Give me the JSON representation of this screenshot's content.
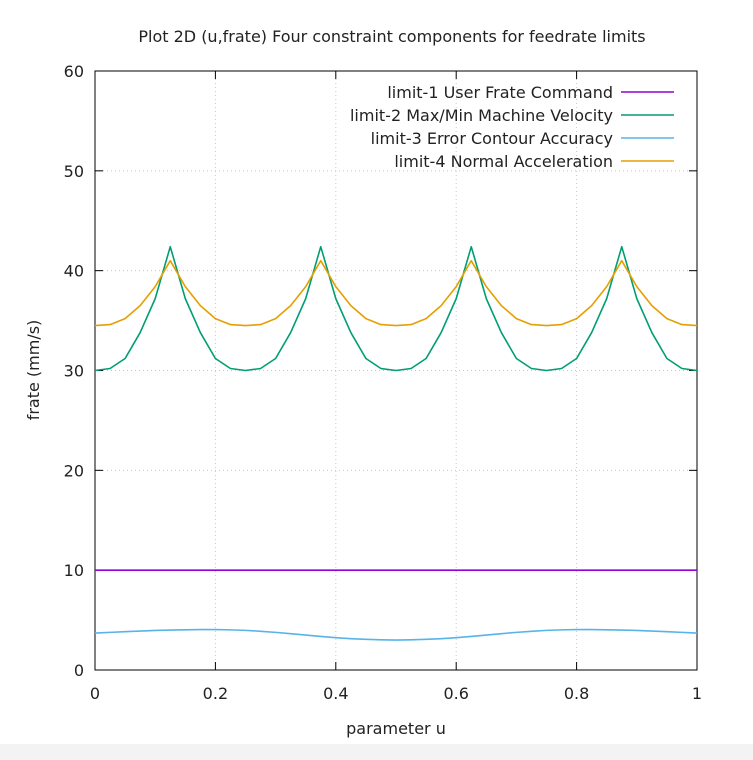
{
  "chart_data": {
    "type": "line",
    "title": "Plot 2D (u,frate) Four constraint components for feedrate limits",
    "xlabel": "parameter u",
    "ylabel": "frate (mm/s)",
    "xlim": [
      0,
      1
    ],
    "ylim": [
      0,
      60
    ],
    "xticks": [
      0,
      0.2,
      0.4,
      0.6,
      0.8,
      1
    ],
    "xtick_labels": [
      "0",
      "0.2",
      "0.4",
      "0.6",
      "0.8",
      "1"
    ],
    "yticks": [
      0,
      10,
      20,
      30,
      40,
      50,
      60
    ],
    "ytick_labels": [
      "0",
      "10",
      "20",
      "30",
      "40",
      "50",
      "60"
    ],
    "grid": true,
    "legend_position": "top-right",
    "x": [
      0,
      0.025,
      0.05,
      0.075,
      0.1,
      0.125,
      0.15,
      0.175,
      0.2,
      0.225,
      0.25,
      0.275,
      0.3,
      0.325,
      0.35,
      0.375,
      0.4,
      0.425,
      0.45,
      0.475,
      0.5,
      0.525,
      0.55,
      0.575,
      0.6,
      0.625,
      0.65,
      0.675,
      0.7,
      0.725,
      0.75,
      0.775,
      0.8,
      0.825,
      0.85,
      0.875,
      0.9,
      0.925,
      0.95,
      0.975,
      1
    ],
    "series": [
      {
        "name": "limit-1 User Frate Command",
        "color": "#9400d3",
        "values": [
          10,
          10,
          10,
          10,
          10,
          10,
          10,
          10,
          10,
          10,
          10,
          10,
          10,
          10,
          10,
          10,
          10,
          10,
          10,
          10,
          10,
          10,
          10,
          10,
          10,
          10,
          10,
          10,
          10,
          10,
          10,
          10,
          10,
          10,
          10,
          10,
          10,
          10,
          10,
          10,
          10
        ]
      },
      {
        "name": "limit-2 Max/Min Machine Velocity",
        "color": "#009e73",
        "values": [
          30.0,
          30.2,
          31.2,
          33.8,
          37.2,
          42.4,
          37.2,
          33.8,
          31.2,
          30.2,
          30.0,
          30.2,
          31.2,
          33.8,
          37.2,
          42.4,
          37.2,
          33.8,
          31.2,
          30.2,
          30.0,
          30.2,
          31.2,
          33.8,
          37.2,
          42.4,
          37.2,
          33.8,
          31.2,
          30.2,
          30.0,
          30.2,
          31.2,
          33.8,
          37.2,
          42.4,
          37.2,
          33.8,
          31.2,
          30.2,
          30.0
        ]
      },
      {
        "name": "limit-3 Error Contour Accuracy",
        "color": "#56b4e9",
        "values": [
          3.7,
          3.77,
          3.84,
          3.9,
          3.96,
          4.0,
          4.03,
          4.05,
          4.05,
          4.02,
          3.97,
          3.88,
          3.77,
          3.64,
          3.5,
          3.36,
          3.24,
          3.14,
          3.07,
          3.02,
          3.0,
          3.02,
          3.07,
          3.14,
          3.24,
          3.36,
          3.5,
          3.64,
          3.77,
          3.88,
          3.97,
          4.02,
          4.05,
          4.05,
          4.03,
          4.0,
          3.96,
          3.9,
          3.84,
          3.77,
          3.7
        ]
      },
      {
        "name": "limit-4 Normal Acceleration",
        "color": "#e69f00",
        "values": [
          34.5,
          34.6,
          35.2,
          36.5,
          38.4,
          41.0,
          38.4,
          36.5,
          35.2,
          34.6,
          34.5,
          34.6,
          35.2,
          36.5,
          38.4,
          41.0,
          38.4,
          36.5,
          35.2,
          34.6,
          34.5,
          34.6,
          35.2,
          36.5,
          38.4,
          41.0,
          38.4,
          36.5,
          35.2,
          34.6,
          34.5,
          34.6,
          35.2,
          36.5,
          38.4,
          41.0,
          38.4,
          36.5,
          35.2,
          34.6,
          34.5
        ]
      }
    ]
  }
}
